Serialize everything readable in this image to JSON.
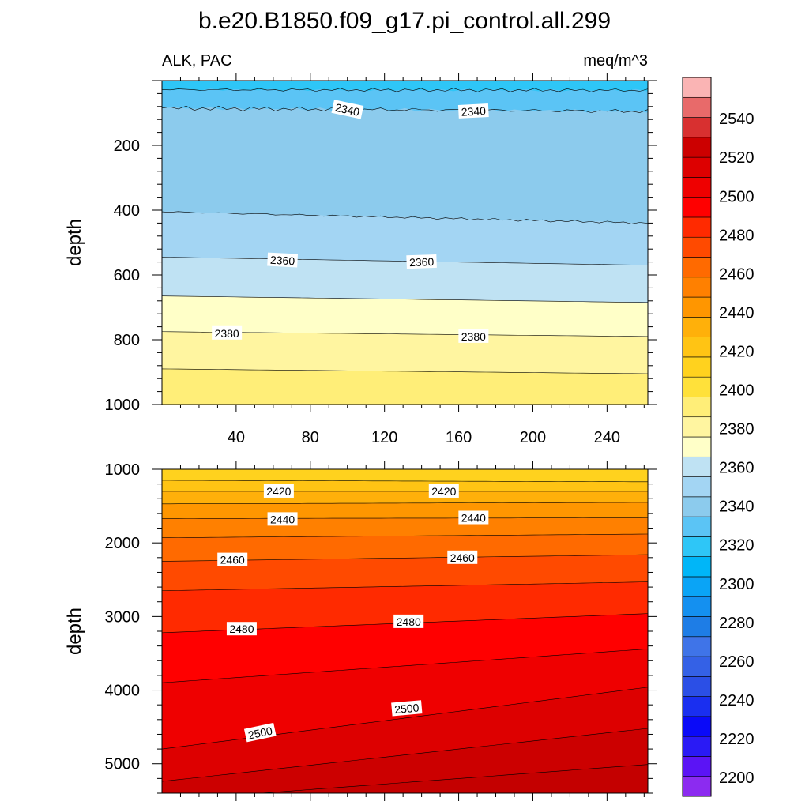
{
  "chart_data": {
    "type": "contour",
    "title": "b.e20.B1850.f09_g17.pi_control.all.299",
    "left_string": "ALK, PAC",
    "right_string": "meq/m^3",
    "variable": "ALK",
    "basin": "PAC",
    "units": "meq/m^3",
    "colorbar": {
      "levels": [
        2200,
        2220,
        2240,
        2260,
        2280,
        2300,
        2320,
        2340,
        2360,
        2380,
        2400,
        2420,
        2440,
        2460,
        2480,
        2500,
        2520,
        2540
      ],
      "tick_labels": [
        "2200",
        "2220",
        "2240",
        "2260",
        "2280",
        "2300",
        "2320",
        "2340",
        "2360",
        "2380",
        "2400",
        "2420",
        "2440",
        "2460",
        "2480",
        "2500",
        "2520",
        "2540"
      ],
      "colors": [
        "#8c2bf0",
        "#5b14f5",
        "#2a1af5",
        "#0a0af8",
        "#1a2ff0",
        "#2b4fe6",
        "#3461e6",
        "#3f74e8",
        "#1e7de6",
        "#1490f0",
        "#0aa4f6",
        "#00b6f8",
        "#2ec6f7",
        "#5bc4f5",
        "#8ccbed",
        "#a3d5f3",
        "#bfe2f3",
        "#ffffc8",
        "#fff5a0",
        "#ffee78",
        "#ffe13a",
        "#ffd21e",
        "#ffc414",
        "#ffb00a",
        "#ff9600",
        "#ff8000",
        "#ff6a00",
        "#ff4a00",
        "#ff2a00",
        "#ff0000",
        "#ef0000",
        "#dd0000",
        "#cc0000",
        "#d83030",
        "#e86a6a",
        "#fab4b4"
      ]
    },
    "panels": [
      {
        "name": "upper",
        "xlabel": "",
        "ylabel": "depth",
        "xlim": [
          0,
          262
        ],
        "ylim": [
          1000,
          0
        ],
        "x_ticks": [
          40,
          80,
          120,
          160,
          200,
          240
        ],
        "x_tick_labels": [
          "40",
          "80",
          "120",
          "160",
          "200",
          "240"
        ],
        "y_ticks": [
          200,
          400,
          600,
          800,
          1000
        ],
        "y_tick_labels": [
          "200",
          "400",
          "600",
          "800",
          "1000"
        ],
        "contour_labels": [
          {
            "text": "2340",
            "x": 100,
            "y": 90,
            "angle": 12
          },
          {
            "text": "2340",
            "x": 168,
            "y": 95,
            "angle": -3
          },
          {
            "text": "2360",
            "x": 65,
            "y": 555,
            "angle": 3
          },
          {
            "text": "2360",
            "x": 140,
            "y": 560,
            "angle": -2
          },
          {
            "text": "2380",
            "x": 35,
            "y": 780,
            "angle": 0
          },
          {
            "text": "2380",
            "x": 168,
            "y": 790,
            "angle": 0
          }
        ]
      },
      {
        "name": "lower",
        "xlabel": "",
        "ylabel": "depth",
        "xlim": [
          0,
          262
        ],
        "ylim": [
          5400,
          1000
        ],
        "x_ticks": [
          40,
          80,
          120,
          160,
          200,
          240
        ],
        "x_tick_labels": [],
        "y_ticks": [
          1000,
          2000,
          3000,
          4000,
          5000
        ],
        "y_tick_labels": [
          "1000",
          "2000",
          "3000",
          "4000",
          "5000"
        ],
        "contour_labels": [
          {
            "text": "2420",
            "x": 63,
            "y": 1300,
            "angle": 0
          },
          {
            "text": "2420",
            "x": 152,
            "y": 1300,
            "angle": 0
          },
          {
            "text": "2440",
            "x": 65,
            "y": 1680,
            "angle": 0
          },
          {
            "text": "2440",
            "x": 168,
            "y": 1660,
            "angle": 0
          },
          {
            "text": "2460",
            "x": 38,
            "y": 2230,
            "angle": 0
          },
          {
            "text": "2460",
            "x": 162,
            "y": 2200,
            "angle": 0
          },
          {
            "text": "2480",
            "x": 43,
            "y": 3170,
            "angle": 0
          },
          {
            "text": "2480",
            "x": 133,
            "y": 3070,
            "angle": 0
          },
          {
            "text": "2500",
            "x": 53,
            "y": 4580,
            "angle": -12
          },
          {
            "text": "2500",
            "x": 132,
            "y": 4250,
            "angle": -5
          }
        ]
      }
    ]
  }
}
